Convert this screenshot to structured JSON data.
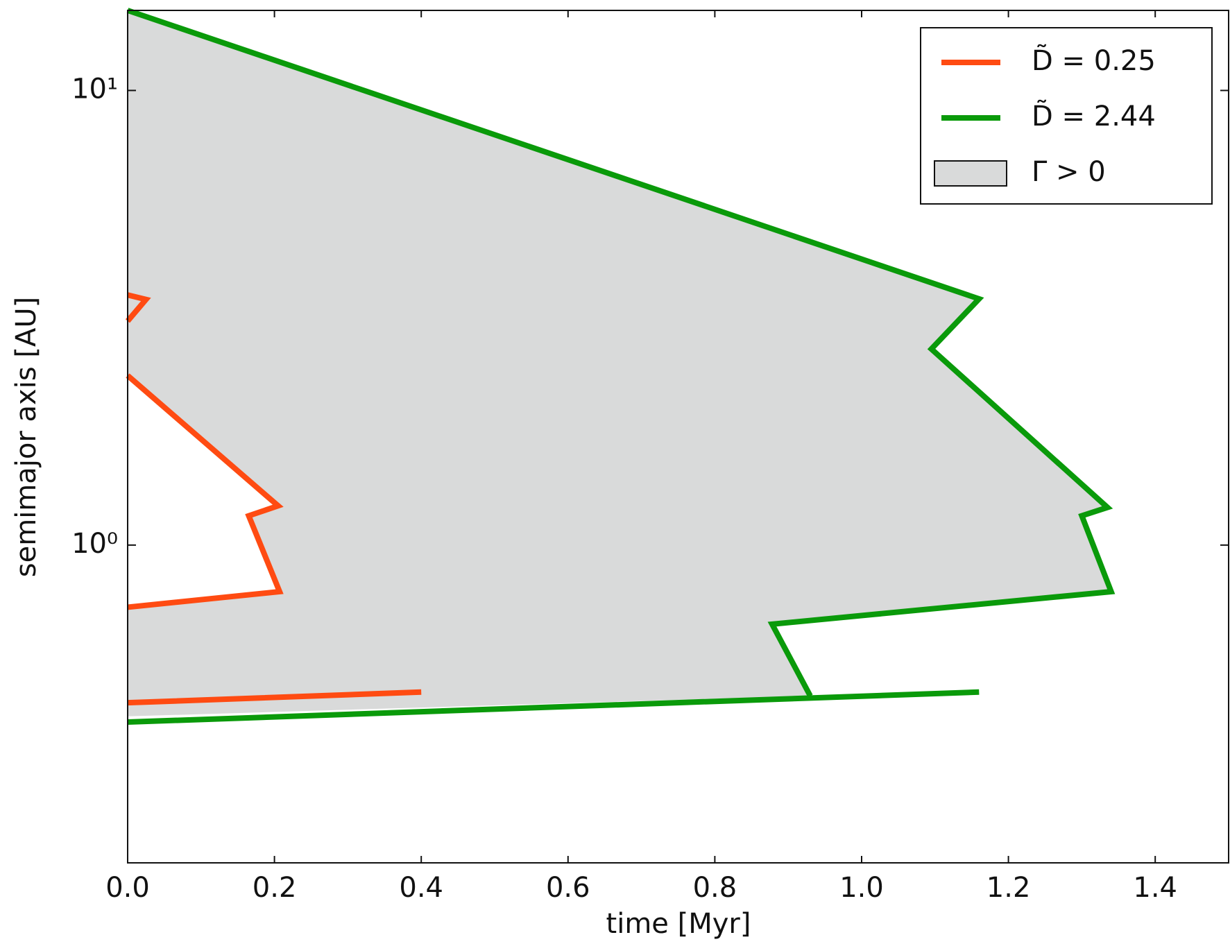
{
  "chart_data": {
    "type": "line",
    "xlabel": "time [Myr]",
    "ylabel": "semimajor axis [AU]",
    "xlim": [
      0,
      1.5
    ],
    "ylim": [
      0.2,
      15
    ],
    "ylog": true,
    "xticks": [
      {
        "value": 0,
        "label": "0.0"
      },
      0.2,
      0.4,
      0.6,
      0.8,
      {
        "value": 1,
        "label": "1.0"
      },
      1.2,
      1.4
    ],
    "yticks": [
      {
        "value": 1,
        "label": "10⁰"
      },
      {
        "value": 10,
        "label": "10¹"
      }
    ],
    "legend": "upper right",
    "series": [
      {
        "name": "D̃ = 0.25",
        "color": "#ff4b12",
        "x": [
          0,
          0.025,
          0,
          null,
          0,
          0.205,
          0.165,
          0.207,
          0,
          null,
          0,
          0.4
        ],
        "values": [
          3.55,
          3.47,
          3.11,
          null,
          2.36,
          1.22,
          1.16,
          0.79,
          0.73,
          null,
          0.45,
          0.475
        ]
      },
      {
        "name": "D̃ = 2.44",
        "color": "#0a9a0a",
        "x": [
          0,
          1.16,
          1.095,
          1.335,
          1.3,
          1.34,
          0.878,
          0.93,
          null,
          0,
          1.16
        ],
        "values": [
          15,
          3.48,
          2.7,
          1.21,
          1.16,
          0.79,
          0.67,
          0.466,
          null,
          0.408,
          0.475
        ]
      }
    ],
    "fill": {
      "name": "Γ > 0",
      "color": "#d9dada",
      "x": [
        0,
        1.16,
        1.095,
        1.335,
        1.3,
        1.34,
        0.878,
        0.93,
        0,
        0,
        0.207,
        0.165,
        0.205,
        0
      ],
      "values": [
        15,
        3.48,
        2.7,
        1.21,
        1.16,
        0.79,
        0.67,
        0.466,
        0.42,
        0.73,
        0.79,
        1.16,
        1.22,
        2.36
      ]
    }
  }
}
